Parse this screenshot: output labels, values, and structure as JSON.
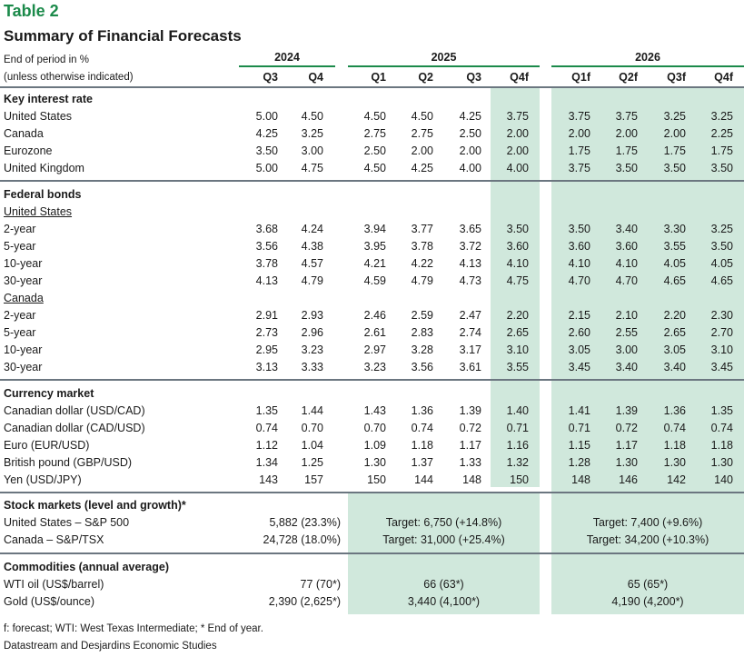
{
  "title": "Table 2",
  "subtitle": "Summary of Financial Forecasts",
  "header": {
    "note_line1": "End of period in %",
    "note_line2": "(unless otherwise indicated)",
    "years": [
      "2024",
      "2025",
      "2026"
    ],
    "quarters": [
      "Q3",
      "Q4",
      "Q1",
      "Q2",
      "Q3",
      "Q4f",
      "Q1f",
      "Q2f",
      "Q3f",
      "Q4f"
    ]
  },
  "colors": {
    "accent": "#1b8a4a",
    "shade": "#d0e8dc",
    "rule": "#6b7680"
  },
  "sections": {
    "key_rate": {
      "title": "Key interest rate",
      "rows": [
        {
          "label": "United States",
          "values": [
            "5.00",
            "4.50",
            "4.50",
            "4.50",
            "4.25",
            "3.75",
            "3.75",
            "3.75",
            "3.25",
            "3.25"
          ]
        },
        {
          "label": "Canada",
          "values": [
            "4.25",
            "3.25",
            "2.75",
            "2.75",
            "2.50",
            "2.00",
            "2.00",
            "2.00",
            "2.00",
            "2.25"
          ]
        },
        {
          "label": "Eurozone",
          "values": [
            "3.50",
            "3.00",
            "2.50",
            "2.00",
            "2.00",
            "2.00",
            "1.75",
            "1.75",
            "1.75",
            "1.75"
          ]
        },
        {
          "label": "United Kingdom",
          "values": [
            "5.00",
            "4.75",
            "4.50",
            "4.25",
            "4.00",
            "4.00",
            "3.75",
            "3.50",
            "3.50",
            "3.50"
          ]
        }
      ]
    },
    "bonds": {
      "title": "Federal bonds",
      "us_title": "United States",
      "us_rows": [
        {
          "label": "2-year",
          "values": [
            "3.68",
            "4.24",
            "3.94",
            "3.77",
            "3.65",
            "3.50",
            "3.50",
            "3.40",
            "3.30",
            "3.25"
          ]
        },
        {
          "label": "5-year",
          "values": [
            "3.56",
            "4.38",
            "3.95",
            "3.78",
            "3.72",
            "3.60",
            "3.60",
            "3.60",
            "3.55",
            "3.50"
          ]
        },
        {
          "label": "10-year",
          "values": [
            "3.78",
            "4.57",
            "4.21",
            "4.22",
            "4.13",
            "4.10",
            "4.10",
            "4.10",
            "4.05",
            "4.05"
          ]
        },
        {
          "label": "30-year",
          "values": [
            "4.13",
            "4.79",
            "4.59",
            "4.79",
            "4.73",
            "4.75",
            "4.70",
            "4.70",
            "4.65",
            "4.65"
          ]
        }
      ],
      "ca_title": "Canada",
      "ca_rows": [
        {
          "label": "2-year",
          "values": [
            "2.91",
            "2.93",
            "2.46",
            "2.59",
            "2.47",
            "2.20",
            "2.15",
            "2.10",
            "2.20",
            "2.30"
          ]
        },
        {
          "label": "5-year",
          "values": [
            "2.73",
            "2.96",
            "2.61",
            "2.83",
            "2.74",
            "2.65",
            "2.60",
            "2.55",
            "2.65",
            "2.70"
          ]
        },
        {
          "label": "10-year",
          "values": [
            "2.95",
            "3.23",
            "2.97",
            "3.28",
            "3.17",
            "3.10",
            "3.05",
            "3.00",
            "3.05",
            "3.10"
          ]
        },
        {
          "label": "30-year",
          "values": [
            "3.13",
            "3.33",
            "3.23",
            "3.56",
            "3.61",
            "3.55",
            "3.45",
            "3.40",
            "3.40",
            "3.45"
          ]
        }
      ]
    },
    "currency": {
      "title": "Currency market",
      "rows": [
        {
          "label": "Canadian dollar (USD/CAD)",
          "values": [
            "1.35",
            "1.44",
            "1.43",
            "1.36",
            "1.39",
            "1.40",
            "1.41",
            "1.39",
            "1.36",
            "1.35"
          ]
        },
        {
          "label": "Canadian dollar (CAD/USD)",
          "values": [
            "0.74",
            "0.70",
            "0.70",
            "0.74",
            "0.72",
            "0.71",
            "0.71",
            "0.72",
            "0.74",
            "0.74"
          ]
        },
        {
          "label": "Euro (EUR/USD)",
          "values": [
            "1.12",
            "1.04",
            "1.09",
            "1.18",
            "1.17",
            "1.16",
            "1.15",
            "1.17",
            "1.18",
            "1.18"
          ]
        },
        {
          "label": "British pound (GBP/USD)",
          "values": [
            "1.34",
            "1.25",
            "1.30",
            "1.37",
            "1.33",
            "1.32",
            "1.28",
            "1.30",
            "1.30",
            "1.30"
          ]
        },
        {
          "label": "Yen (USD/JPY)",
          "values": [
            "143",
            "157",
            "150",
            "144",
            "148",
            "150",
            "148",
            "146",
            "142",
            "140"
          ]
        }
      ]
    },
    "stocks": {
      "title": "Stock markets (level and growth)*",
      "rows": [
        {
          "label": "United States – S&P 500",
          "y2024": "5,882 (23.3%)",
          "y2025": "Target: 6,750 (+14.8%)",
          "y2026": "Target: 7,400 (+9.6%)"
        },
        {
          "label": "Canada – S&P/TSX",
          "y2024": "24,728 (18.0%)",
          "y2025": "Target: 31,000 (+25.4%)",
          "y2026": "Target: 34,200 (+10.3%)"
        }
      ]
    },
    "commodities": {
      "title": "Commodities (annual average)",
      "rows": [
        {
          "label": "WTI oil (US$/barrel)",
          "y2024": "77 (70*)",
          "y2025": "66 (63*)",
          "y2026": "65 (65*)"
        },
        {
          "label": "Gold (US$/ounce)",
          "y2024": "2,390 (2,625*)",
          "y2025": "3,440 (4,100*)",
          "y2026": "4,190 (4,200*)"
        }
      ]
    }
  },
  "footnotes": {
    "line1": "f: forecast; WTI: West Texas Intermediate; * End of year.",
    "line2": "Datastream and Desjardins Economic Studies"
  }
}
